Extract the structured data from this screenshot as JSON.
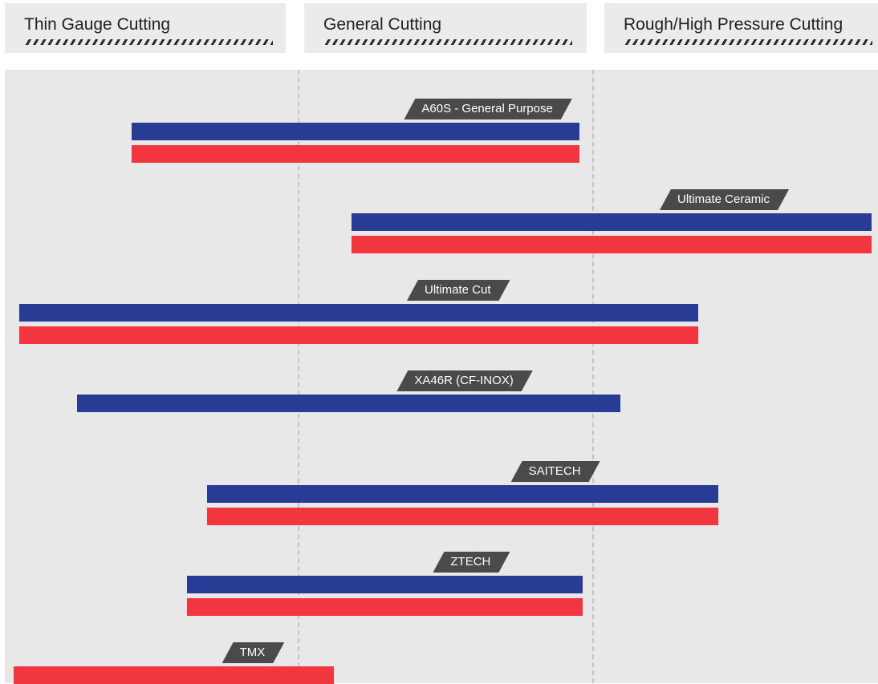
{
  "header": {
    "zones": [
      "Thin Gauge Cutting",
      "General Cutting",
      "Rough/High Pressure Cutting"
    ]
  },
  "colors": {
    "series_1": "#283c96",
    "series_2": "#f23640",
    "tag": "#4a4a4a",
    "panel": "#e8e8e8"
  },
  "chart_data": {
    "type": "bar",
    "orientation": "horizontal-range",
    "zones": [
      "Thin Gauge Cutting",
      "General Cutting",
      "Rough/High Pressure Cutting"
    ],
    "x_range": [
      0,
      3
    ],
    "x_tick_labels": [
      "Thin Gauge Cutting",
      "General Cutting",
      "Rough/High Pressure Cutting"
    ],
    "grid": "dashed zone dividers",
    "categories": [
      "A60S - General Purpose",
      "Ultimate Ceramic",
      "Ultimate Cut",
      "XA46R (CF-INOX)",
      "SAITECH",
      "ZTECH",
      "TMX"
    ],
    "series": [
      {
        "color": "#283c96",
        "ranges": [
          [
            0.44,
            1.99
          ],
          [
            1.2,
            3.0
          ],
          [
            0.05,
            2.4
          ],
          [
            0.25,
            2.13
          ],
          [
            0.7,
            2.47
          ],
          [
            0.63,
            2.0
          ],
          null
        ]
      },
      {
        "color": "#f23640",
        "ranges": [
          [
            0.44,
            1.99
          ],
          [
            1.2,
            3.0
          ],
          [
            0.05,
            2.4
          ],
          null,
          [
            0.7,
            2.47
          ],
          [
            0.63,
            2.0
          ],
          [
            0.03,
            1.14
          ]
        ]
      }
    ]
  }
}
